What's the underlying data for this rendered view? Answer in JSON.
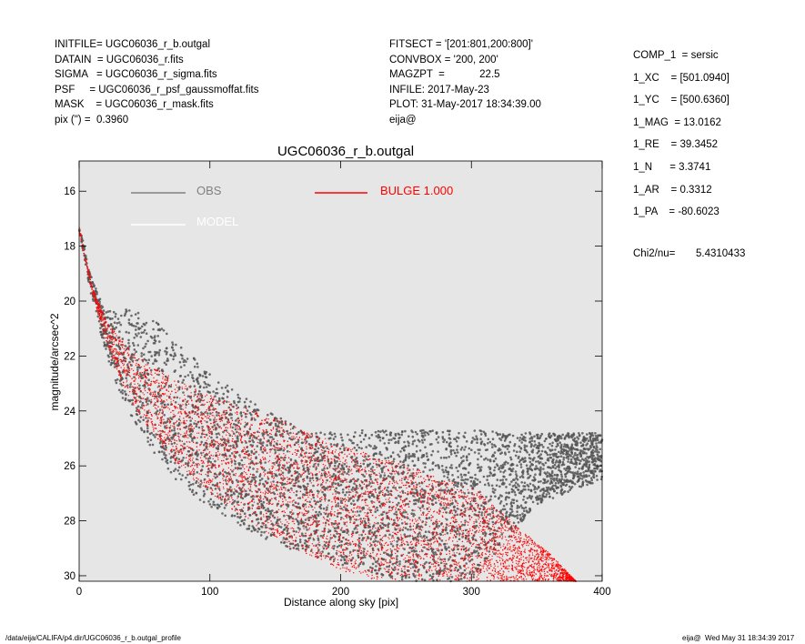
{
  "header_left": [
    "INITFILE= UGC06036_r_b.outgal",
    "DATAIN  = UGC06036_r.fits",
    "SIGMA   = UGC06036_r_sigma.fits",
    "PSF     = UGC06036_r_psf_gaussmoffat.fits",
    "MASK    = UGC06036_r_mask.fits",
    "pix (\") =  0.3960"
  ],
  "header_mid": [
    "FITSECT = '[201:801,200:800]'",
    "CONVBOX = '200, 200'",
    "MAGZPT  =            22.5",
    "INFILE: 2017-May-23",
    "PLOT: 31-May-2017 18:34:39.00",
    "eija@"
  ],
  "header_right": [
    "COMP_1  = sersic",
    "1_XC    = [501.0940]",
    "1_YC    = [500.6360]",
    "1_MAG  = 13.0162",
    "1_RE    = 39.3452",
    "1_N      = 3.3741",
    "1_AR    = 0.3312",
    "1_PA    = -80.6023"
  ],
  "chi": {
    "label": "Chi2/nu=",
    "value": "5.4310433"
  },
  "footer_left": "/data/eija/CALIFA/p4.dir/UGC06036_r_b.outgal_profile",
  "footer_right": "eija@  Wed May 31 18:34:39 2017",
  "chart_data": {
    "type": "scatter",
    "title": "UGC06036_r_b.outgal",
    "xlabel": "Distance along sky [pix]",
    "ylabel": "magnitude/arcsec^2",
    "xlim": [
      0,
      400
    ],
    "ylim": [
      30.2,
      14.9
    ],
    "y_inverted": true,
    "x_ticks": [
      0,
      100,
      200,
      300,
      400
    ],
    "y_ticks": [
      16,
      18,
      20,
      22,
      24,
      26,
      28,
      30
    ],
    "grid": false,
    "background": "#e6e6e6",
    "legend": [
      {
        "label": "OBS",
        "color": "#808080"
      },
      {
        "label": "BULGE  1.000",
        "color": "#ff0000"
      },
      {
        "label": "MODEL",
        "color": "#ffffff"
      }
    ],
    "series": [
      {
        "name": "OBS",
        "color": "#555555",
        "upper_envelope": {
          "x": [
            0,
            10,
            20,
            30,
            40,
            60,
            80,
            100,
            120,
            140,
            160,
            180,
            200,
            250,
            300,
            350,
            400
          ],
          "y": [
            17.2,
            19.2,
            20.4,
            20.3,
            20.3,
            20.8,
            21.7,
            22.6,
            23.3,
            23.9,
            24.4,
            24.8,
            24.7,
            24.7,
            24.7,
            24.8,
            24.8
          ]
        },
        "lower_envelope": {
          "x": [
            0,
            10,
            20,
            30,
            40,
            60,
            80,
            100,
            120,
            140,
            160,
            180,
            200,
            250,
            300,
            350,
            400
          ],
          "y": [
            17.5,
            20.0,
            21.8,
            23.2,
            24.3,
            25.8,
            26.8,
            27.5,
            28.1,
            28.6,
            29.0,
            29.3,
            29.6,
            30.2,
            30.2,
            27.4,
            26.5
          ]
        }
      },
      {
        "name": "BULGE  1.000",
        "color": "#ff0000",
        "upper_envelope": {
          "x": [
            0,
            10,
            20,
            30,
            40,
            60,
            80,
            100,
            150,
            200,
            250,
            305,
            320,
            340,
            360,
            380
          ],
          "y": [
            17.3,
            19.5,
            20.6,
            21.3,
            21.8,
            22.5,
            23.0,
            23.4,
            24.3,
            25.2,
            26.0,
            26.9,
            27.6,
            28.4,
            29.2,
            30.2
          ]
        },
        "lower_envelope": {
          "x": [
            0,
            10,
            20,
            30,
            40,
            60,
            80,
            100,
            120,
            140,
            160,
            180,
            200,
            230
          ],
          "y": [
            17.5,
            19.7,
            21.4,
            22.7,
            23.7,
            25.1,
            26.2,
            27.0,
            27.7,
            28.3,
            28.9,
            29.4,
            29.8,
            30.2
          ]
        }
      }
    ]
  }
}
